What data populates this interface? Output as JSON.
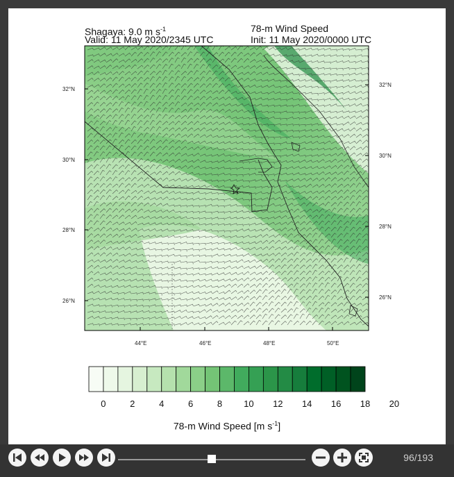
{
  "header": {
    "site_label": "Shagaya: 9.0 m s",
    "site_sup": "-1",
    "valid_time": "Valid: 11 May 2020/2345 UTC",
    "field_title": "78-m Wind Speed",
    "init_time": "Init: 11 May 2020/0000 UTC"
  },
  "axes": {
    "lat_left": [
      "32°N",
      "30°N",
      "28°N",
      "26°N"
    ],
    "lat_right": [
      "32°N",
      "30°N",
      "28°N",
      "26°N"
    ],
    "lon_bottom": [
      "44°E",
      "46°E",
      "48°E",
      "50°E"
    ]
  },
  "colorbar": {
    "ticks": [
      "0",
      "2",
      "4",
      "6",
      "8",
      "10",
      "12",
      "14",
      "16",
      "18",
      "20"
    ],
    "title": "78-m Wind Speed [m s",
    "title_sup": "-1",
    "title_end": "]",
    "colors": [
      "#f7fcf5",
      "#eef9ea",
      "#e5f5e0",
      "#d7efd0",
      "#c7e9c0",
      "#b5e1ad",
      "#a1d99b",
      "#8bcf88",
      "#74c476",
      "#5cb86a",
      "#41ab5d",
      "#35a054",
      "#2b9549",
      "#238b45",
      "#167d3c",
      "#006d2c",
      "#005f26",
      "#00531f",
      "#00441b"
    ]
  },
  "player": {
    "frame_counter": "96/193",
    "progress": 0.497,
    "buttons": [
      "first-frame",
      "step-back",
      "play",
      "step-forward",
      "last-frame"
    ],
    "zoom_buttons": [
      "zoom-out",
      "zoom-in",
      "fullscreen"
    ]
  }
}
